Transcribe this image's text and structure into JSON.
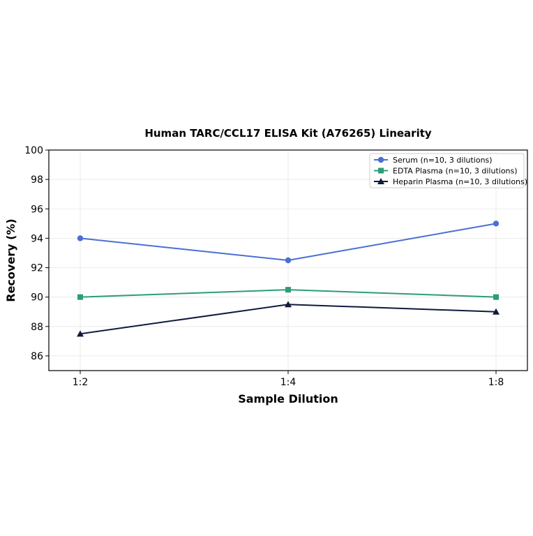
{
  "chart_data": {
    "type": "line",
    "title": "Human TARC/CCL17 ELISA Kit (A76265) Linearity",
    "xlabel": "Sample Dilution",
    "ylabel": "Recovery (%)",
    "categories": [
      "1:2",
      "1:4",
      "1:8"
    ],
    "ylim": [
      85,
      100
    ],
    "yticks": [
      86,
      88,
      90,
      92,
      94,
      96,
      98,
      100
    ],
    "grid": true,
    "legend_position": "top-right",
    "series": [
      {
        "name": "Serum (n=10, 3 dilutions)",
        "values": [
          94,
          92.5,
          95
        ],
        "color": "#4a6fd4",
        "marker": "circle"
      },
      {
        "name": "EDTA Plasma (n=10, 3 dilutions)",
        "values": [
          90,
          90.5,
          90
        ],
        "color": "#2a9d78",
        "marker": "square"
      },
      {
        "name": "Heparin Plasma (n=10, 3 dilutions)",
        "values": [
          87.5,
          89.5,
          89
        ],
        "color": "#101a3c",
        "marker": "triangle"
      }
    ]
  }
}
